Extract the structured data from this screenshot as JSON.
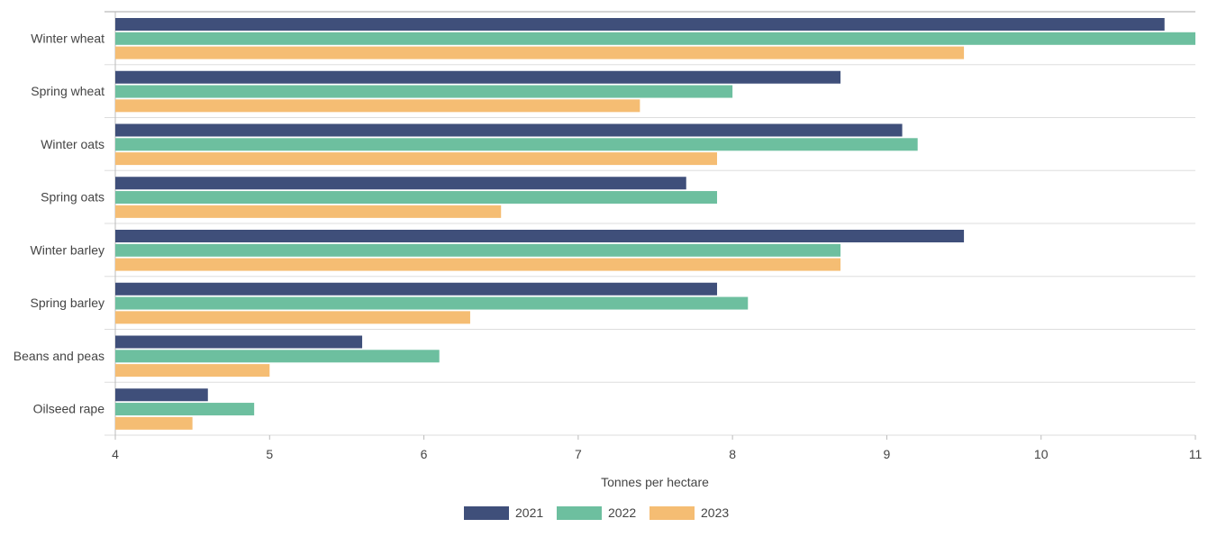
{
  "chart_data": {
    "type": "bar",
    "orientation": "horizontal",
    "categories": [
      "Winter wheat",
      "Spring wheat",
      "Winter oats",
      "Spring oats",
      "Winter barley",
      "Spring barley",
      "Beans and peas",
      "Oilseed rape"
    ],
    "series": [
      {
        "name": "2021",
        "color": "#3f4f7a",
        "values": [
          10.8,
          8.7,
          9.1,
          7.7,
          9.5,
          7.9,
          5.6,
          4.6
        ]
      },
      {
        "name": "2022",
        "color": "#6dbf9f",
        "values": [
          11.0,
          8.0,
          9.2,
          7.9,
          8.7,
          8.1,
          6.1,
          4.9
        ]
      },
      {
        "name": "2023",
        "color": "#f5bd73",
        "values": [
          9.5,
          7.4,
          7.9,
          6.5,
          8.7,
          6.3,
          5.0,
          4.5
        ]
      }
    ],
    "xticks": [
      "4",
      "5",
      "6",
      "7",
      "8",
      "9",
      "10",
      "11"
    ],
    "xlim": [
      4,
      11
    ],
    "xlabel": "Tonnes per hectare",
    "title": "",
    "legend_position": "bottom-center",
    "grid": "horizontal separators"
  },
  "colors": {
    "axis": "#bbbbbb",
    "gridline": "#dddddd",
    "text": "#444444"
  }
}
